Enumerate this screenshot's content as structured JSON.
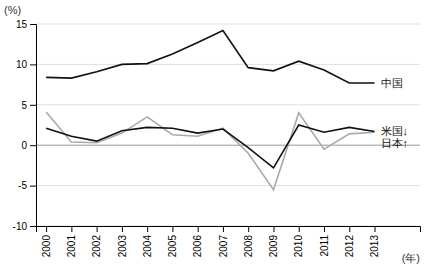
{
  "chart_data": {
    "type": "line",
    "x_label": "(年)",
    "y_label": "(%)",
    "x": [
      2000,
      2001,
      2002,
      2003,
      2004,
      2005,
      2006,
      2007,
      2008,
      2009,
      2010,
      2011,
      2012,
      2013
    ],
    "series": [
      {
        "name": "日本↑",
        "color": "#aaaaaa",
        "values": [
          4.1,
          0.4,
          0.3,
          1.5,
          3.5,
          1.3,
          1.1,
          2.1,
          -1.0,
          -5.5,
          4.0,
          -0.5,
          1.4,
          1.6
        ]
      },
      {
        "name": "米国↓",
        "color": "#111111",
        "values": [
          2.1,
          1.1,
          0.5,
          1.8,
          2.2,
          2.1,
          1.5,
          2.0,
          -0.3,
          -2.8,
          2.5,
          1.6,
          2.2,
          1.7
        ]
      },
      {
        "name": "中国",
        "color": "#111111",
        "values": [
          8.4,
          8.3,
          9.1,
          10.0,
          10.1,
          11.3,
          12.7,
          14.2,
          9.6,
          9.2,
          10.4,
          9.3,
          7.7,
          7.7
        ]
      }
    ],
    "xlim": [
      1999.6,
      2014.8
    ],
    "xticks": [
      2000,
      2001,
      2002,
      2003,
      2004,
      2005,
      2006,
      2007,
      2008,
      2009,
      2010,
      2011,
      2012,
      2013
    ],
    "ylim": [
      -10,
      15
    ],
    "yticks": [
      -10,
      -5,
      0,
      5,
      10,
      15
    ],
    "grid": true
  }
}
